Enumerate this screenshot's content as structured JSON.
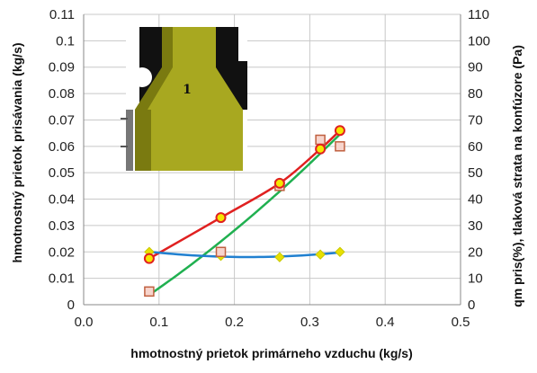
{
  "chart_data": {
    "type": "scatter",
    "xlabel": "hmotnostný prietok primárneho vzduchu (kg/s)",
    "ylabel_left": "hmotnostný prietok prisávania (kg/s)",
    "ylabel_right": "qm pris(%), tlaková strata na konfúzore (Pa)",
    "xlim": [
      0,
      0.5
    ],
    "ylim_left": [
      0,
      0.11
    ],
    "ylim_right": [
      0,
      110
    ],
    "x_ticks": [
      "0.0",
      "0.1",
      "0.2",
      "0.3",
      "0.4",
      "0.5"
    ],
    "y_left_ticks": [
      "0",
      "0.01",
      "0.02",
      "0.03",
      "0.04",
      "0.05",
      "0.06",
      "0.07",
      "0.08",
      "0.09",
      "0.1",
      "0.11"
    ],
    "y_right_ticks": [
      "0",
      "10",
      "20",
      "30",
      "40",
      "50",
      "60",
      "70",
      "80",
      "90",
      "100",
      "110"
    ],
    "grid": true,
    "series": [
      {
        "marker": "circle",
        "color": "#e02020",
        "marker_fill": "#f5e600",
        "line": "smooth",
        "x": [
          0.087,
          0.182,
          0.26,
          0.314,
          0.34
        ],
        "y": [
          0.0175,
          0.033,
          0.046,
          0.059,
          0.066
        ]
      },
      {
        "marker": "square",
        "color": "#c06040",
        "marker_fill": "#f7d4cc",
        "line": "fit",
        "line_color": "#20b050",
        "x": [
          0.087,
          0.182,
          0.26,
          0.314,
          0.34
        ],
        "y": [
          0.005,
          0.02,
          0.045,
          0.0625,
          0.06
        ]
      },
      {
        "marker": "diamond",
        "color": "#c8c800",
        "marker_fill": "#e8e000",
        "line": "fit",
        "line_color": "#2080d0",
        "x": [
          0.087,
          0.182,
          0.26,
          0.314,
          0.34
        ],
        "y": [
          0.02,
          0.0185,
          0.018,
          0.019,
          0.02
        ]
      }
    ],
    "inset": {
      "label": "1",
      "shape": "nozzle",
      "colors": {
        "body": "#a8a820",
        "dark": "#111111",
        "shade": "#7a7a10"
      }
    }
  }
}
